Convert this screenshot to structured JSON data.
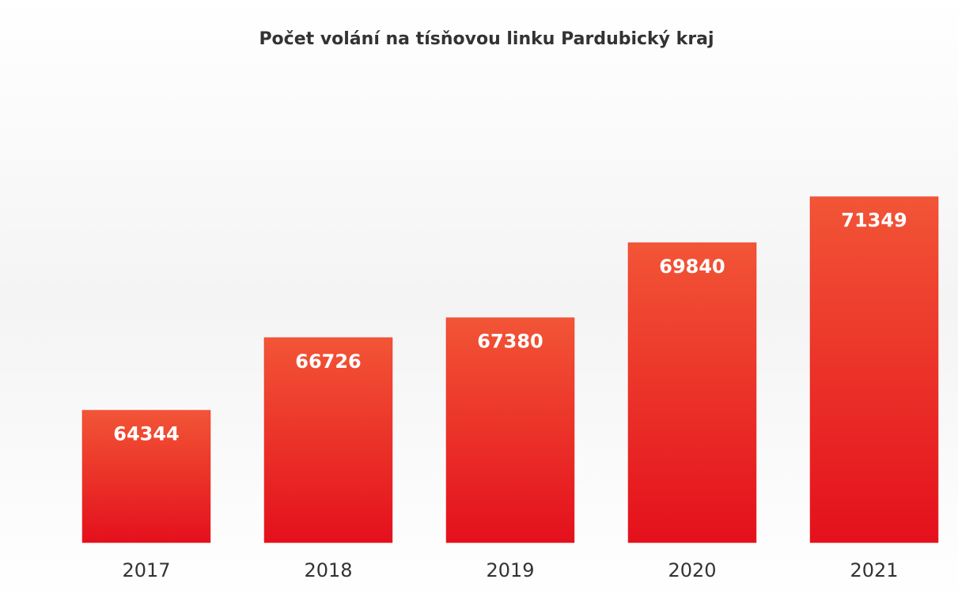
{
  "chart_data": {
    "type": "bar",
    "title": "Počet volání na tísňovou linku Pardubický kraj",
    "categories": [
      "2017",
      "2018",
      "2019",
      "2020",
      "2021"
    ],
    "values": [
      64344,
      66726,
      67380,
      69840,
      71349
    ],
    "color": "#ea2a22",
    "ylim": [
      60000,
      75000
    ]
  }
}
